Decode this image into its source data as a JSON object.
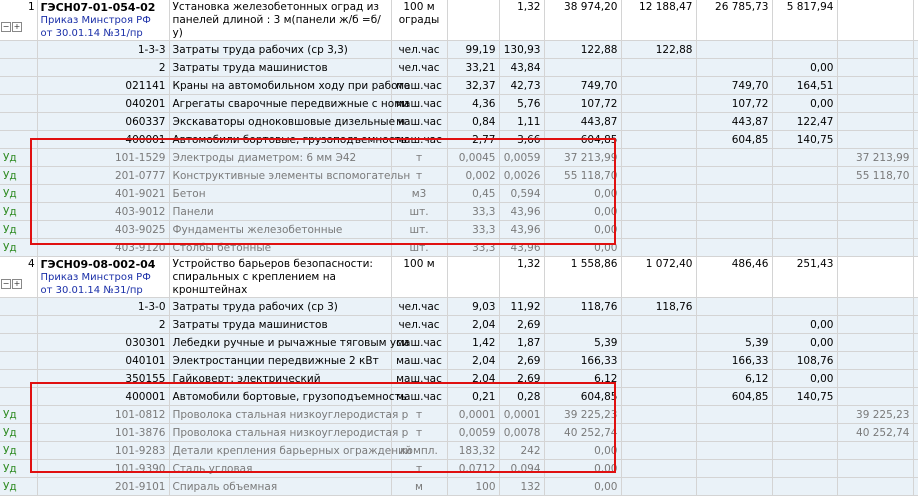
{
  "positions": [
    {
      "index": "1",
      "code": "ГЭСН07-01-054-02",
      "reference": "Приказ Минстроя РФ от 30.01.14 №31/пр",
      "name": "Установка железобетонных оград из панелей длиной : 3 м(панели ж/б =б/у)",
      "unit": "100 м ограды",
      "qty": "",
      "qty_total": "1,32",
      "total": "38 974,20",
      "c1": "12 188,47",
      "c2": "26 785,73",
      "c3": "5 817,94",
      "c4": "",
      "rows": [
        {
          "type": "sub",
          "left": "",
          "code": "1-3-3",
          "name": "Затраты труда рабочих (ср 3,3)",
          "unit": "чел.час",
          "q1": "99,19",
          "q2": "130,93",
          "total": "122,88",
          "c1": "122,88",
          "c2": "",
          "c3": "",
          "c4": ""
        },
        {
          "type": "sub",
          "left": "",
          "code": "2",
          "name": "Затраты труда машинистов",
          "unit": "чел.час",
          "q1": "33,21",
          "q2": "43,84",
          "total": "",
          "c1": "",
          "c2": "",
          "c3": "0,00",
          "c4": ""
        },
        {
          "type": "sub",
          "left": "",
          "code": "021141",
          "name": "Краны на автомобильном ходу при работе",
          "unit": "маш.час",
          "q1": "32,37",
          "q2": "42,73",
          "total": "749,70",
          "c1": "",
          "c2": "749,70",
          "c3": "164,51",
          "c4": ""
        },
        {
          "type": "sub",
          "left": "",
          "code": "040201",
          "name": "Агрегаты сварочные передвижные с номи",
          "unit": "маш.час",
          "q1": "4,36",
          "q2": "5,76",
          "total": "107,72",
          "c1": "",
          "c2": "107,72",
          "c3": "0,00",
          "c4": ""
        },
        {
          "type": "sub",
          "left": "",
          "code": "060337",
          "name": "Экскаваторы одноковшовые дизельные н",
          "unit": "маш.час",
          "q1": "0,84",
          "q2": "1,11",
          "total": "443,87",
          "c1": "",
          "c2": "443,87",
          "c3": "122,47",
          "c4": ""
        },
        {
          "type": "sub",
          "left": "",
          "code": "400001",
          "name": "Автомобили бортовые, грузоподъемность",
          "unit": "маш.час",
          "q1": "2,77",
          "q2": "3,66",
          "total": "604,85",
          "c1": "",
          "c2": "604,85",
          "c3": "140,75",
          "c4": ""
        },
        {
          "type": "ud",
          "left": "Уд",
          "code": "101-1529",
          "name": "Электроды диаметром: 6 мм Э42",
          "unit": "т",
          "q1": "0,0045",
          "q2": "0,0059",
          "total": "37 213,99",
          "c1": "",
          "c2": "",
          "c3": "",
          "c4": "37 213,99"
        },
        {
          "type": "ud",
          "left": "Уд",
          "code": "201-0777",
          "name": "Конструктивные элементы вспомогательн",
          "unit": "т",
          "q1": "0,002",
          "q2": "0,0026",
          "total": "55 118,70",
          "c1": "",
          "c2": "",
          "c3": "",
          "c4": "55 118,70"
        },
        {
          "type": "ud",
          "left": "Уд",
          "code": "401-9021",
          "name": "Бетон",
          "unit": "м3",
          "q1": "0,45",
          "q2": "0,594",
          "total": "0,00",
          "c1": "",
          "c2": "",
          "c3": "",
          "c4": ""
        },
        {
          "type": "ud",
          "left": "Уд",
          "code": "403-9012",
          "name": "Панели",
          "unit": "шт.",
          "q1": "33,3",
          "q2": "43,96",
          "total": "0,00",
          "c1": "",
          "c2": "",
          "c3": "",
          "c4": ""
        },
        {
          "type": "ud",
          "left": "Уд",
          "code": "403-9025",
          "name": "Фундаменты железобетонные",
          "unit": "шт.",
          "q1": "33,3",
          "q2": "43,96",
          "total": "0,00",
          "c1": "",
          "c2": "",
          "c3": "",
          "c4": ""
        },
        {
          "type": "ud",
          "left": "Уд",
          "code": "403-9120",
          "name": "Столбы бетонные",
          "unit": "шт.",
          "q1": "33,3",
          "q2": "43,96",
          "total": "0,00",
          "c1": "",
          "c2": "",
          "c3": "",
          "c4": ""
        }
      ]
    },
    {
      "index": "4",
      "code": "ГЭСН09-08-002-04",
      "reference": "Приказ Минстроя РФ от 30.01.14 №31/пр",
      "name": "Устройство барьеров безопасности: спиральных с креплением на кронштейнах",
      "unit": "100 м",
      "qty": "",
      "qty_total": "1,32",
      "total": "1 558,86",
      "c1": "1 072,40",
      "c2": "486,46",
      "c3": "251,43",
      "c4": "",
      "rows": [
        {
          "type": "sub",
          "left": "",
          "code": "1-3-0",
          "name": "Затраты труда рабочих (ср 3)",
          "unit": "чел.час",
          "q1": "9,03",
          "q2": "11,92",
          "total": "118,76",
          "c1": "118,76",
          "c2": "",
          "c3": "",
          "c4": ""
        },
        {
          "type": "sub",
          "left": "",
          "code": "2",
          "name": "Затраты труда машинистов",
          "unit": "чел.час",
          "q1": "2,04",
          "q2": "2,69",
          "total": "",
          "c1": "",
          "c2": "",
          "c3": "0,00",
          "c4": ""
        },
        {
          "type": "sub",
          "left": "",
          "code": "030301",
          "name": "Лебедки ручные и рычажные тяговым уси",
          "unit": "маш.час",
          "q1": "1,42",
          "q2": "1,87",
          "total": "5,39",
          "c1": "",
          "c2": "5,39",
          "c3": "0,00",
          "c4": ""
        },
        {
          "type": "sub",
          "left": "",
          "code": "040101",
          "name": "Электростанции передвижные 2 кВт",
          "unit": "маш.час",
          "q1": "2,04",
          "q2": "2,69",
          "total": "166,33",
          "c1": "",
          "c2": "166,33",
          "c3": "108,76",
          "c4": ""
        },
        {
          "type": "sub",
          "left": "",
          "code": "350155",
          "name": "Гайковерт: электрический",
          "unit": "маш.час",
          "q1": "2,04",
          "q2": "2,69",
          "total": "6,12",
          "c1": "",
          "c2": "6,12",
          "c3": "0,00",
          "c4": ""
        },
        {
          "type": "sub",
          "left": "",
          "code": "400001",
          "name": "Автомобили бортовые, грузоподъемность",
          "unit": "маш.час",
          "q1": "0,21",
          "q2": "0,28",
          "total": "604,85",
          "c1": "",
          "c2": "604,85",
          "c3": "140,75",
          "c4": ""
        },
        {
          "type": "ud",
          "left": "Уд",
          "code": "101-0812",
          "name": "Проволока стальная низкоуглеродистая р",
          "unit": "т",
          "q1": "0,0001",
          "q2": "0,0001",
          "total": "39 225,23",
          "c1": "",
          "c2": "",
          "c3": "",
          "c4": "39 225,23"
        },
        {
          "type": "ud",
          "left": "Уд",
          "code": "101-3876",
          "name": "Проволока стальная низкоуглеродистая р",
          "unit": "т",
          "q1": "0,0059",
          "q2": "0,0078",
          "total": "40 252,74",
          "c1": "",
          "c2": "",
          "c3": "",
          "c4": "40 252,74"
        },
        {
          "type": "ud",
          "left": "Уд",
          "code": "101-9283",
          "name": "Детали крепления барьерных ограждений",
          "unit": "компл.",
          "q1": "183,32",
          "q2": "242",
          "total": "0,00",
          "c1": "",
          "c2": "",
          "c3": "",
          "c4": ""
        },
        {
          "type": "ud",
          "left": "Уд",
          "code": "101-9390",
          "name": "Сталь угловая",
          "unit": "т",
          "q1": "0,0712",
          "q2": "0,094",
          "total": "0,00",
          "c1": "",
          "c2": "",
          "c3": "",
          "c4": ""
        },
        {
          "type": "ud",
          "left": "Уд",
          "code": "201-9101",
          "name": "Спираль объемная",
          "unit": "м",
          "q1": "100",
          "q2": "132",
          "total": "0,00",
          "c1": "",
          "c2": "",
          "c3": "",
          "c4": ""
        }
      ]
    }
  ],
  "colors": {
    "highlight": "#e01010",
    "sub_bg": "#eaf2f8",
    "ud_label": "#2e8b22",
    "link": "#1a2fa8"
  },
  "icons": {
    "collapse": "minus-box-icon",
    "expand": "plus-box-icon"
  }
}
